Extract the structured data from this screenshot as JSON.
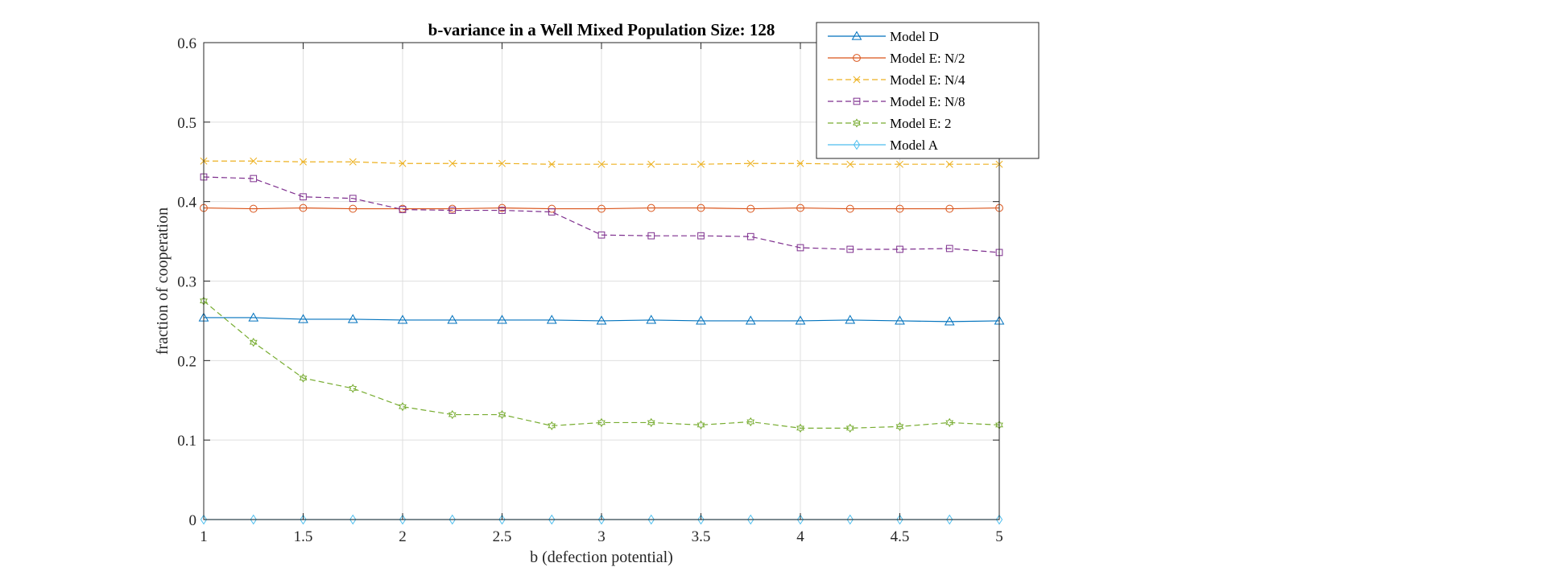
{
  "chart_data": {
    "type": "line",
    "title": "b-variance in a Well Mixed Population Size: 128",
    "xlabel": "b (defection potential)",
    "ylabel": "fraction of cooperation",
    "xlim": [
      1,
      5
    ],
    "ylim": [
      0,
      0.6
    ],
    "xticks": [
      1,
      1.5,
      2,
      2.5,
      3,
      3.5,
      4,
      4.5,
      5
    ],
    "xtick_labels": [
      "1",
      "1.5",
      "2",
      "2.5",
      "3",
      "3.5",
      "4",
      "4.5",
      "5"
    ],
    "yticks": [
      0,
      0.1,
      0.2,
      0.3,
      0.4,
      0.5,
      0.6
    ],
    "ytick_labels": [
      "0",
      "0.1",
      "0.2",
      "0.3",
      "0.4",
      "0.5",
      "0.6"
    ],
    "grid": true,
    "legend_position": "top-right",
    "x": [
      1,
      1.25,
      1.5,
      1.75,
      2,
      2.25,
      2.5,
      2.75,
      3,
      3.25,
      3.5,
      3.75,
      4,
      4.25,
      4.5,
      4.75,
      5
    ],
    "series": [
      {
        "name": "Model D",
        "color": "#0072BD",
        "marker": "triangle",
        "dash": "solid",
        "values": [
          0.254,
          0.254,
          0.252,
          0.252,
          0.251,
          0.251,
          0.251,
          0.251,
          0.25,
          0.251,
          0.25,
          0.25,
          0.25,
          0.251,
          0.25,
          0.249,
          0.25
        ]
      },
      {
        "name": "Model E: N/2",
        "color": "#D95319",
        "marker": "circle",
        "dash": "solid",
        "values": [
          0.392,
          0.391,
          0.392,
          0.391,
          0.391,
          0.391,
          0.392,
          0.391,
          0.391,
          0.392,
          0.392,
          0.391,
          0.392,
          0.391,
          0.391,
          0.391,
          0.392
        ]
      },
      {
        "name": "Model E: N/4",
        "color": "#EDB120",
        "marker": "x",
        "dash": "dashed",
        "values": [
          0.451,
          0.451,
          0.45,
          0.45,
          0.448,
          0.448,
          0.448,
          0.447,
          0.447,
          0.447,
          0.447,
          0.448,
          0.448,
          0.447,
          0.447,
          0.447,
          0.447
        ]
      },
      {
        "name": "Model E: N/8",
        "color": "#7E2F8E",
        "marker": "square",
        "dash": "dashed",
        "values": [
          0.431,
          0.429,
          0.406,
          0.404,
          0.39,
          0.389,
          0.389,
          0.387,
          0.358,
          0.357,
          0.357,
          0.356,
          0.342,
          0.34,
          0.34,
          0.341,
          0.336
        ]
      },
      {
        "name": "Model E: 2",
        "color": "#77AC30",
        "marker": "hexagram",
        "dash": "dashed",
        "values": [
          0.275,
          0.223,
          0.178,
          0.165,
          0.142,
          0.132,
          0.132,
          0.118,
          0.122,
          0.122,
          0.119,
          0.123,
          0.115,
          0.115,
          0.117,
          0.122,
          0.119
        ]
      },
      {
        "name": "Model A",
        "color": "#4DBEEE",
        "marker": "diamond",
        "dash": "solid",
        "values": [
          0,
          0,
          0,
          0,
          0,
          0,
          0,
          0,
          0,
          0,
          0,
          0,
          0,
          0,
          0,
          0,
          0
        ]
      }
    ]
  }
}
